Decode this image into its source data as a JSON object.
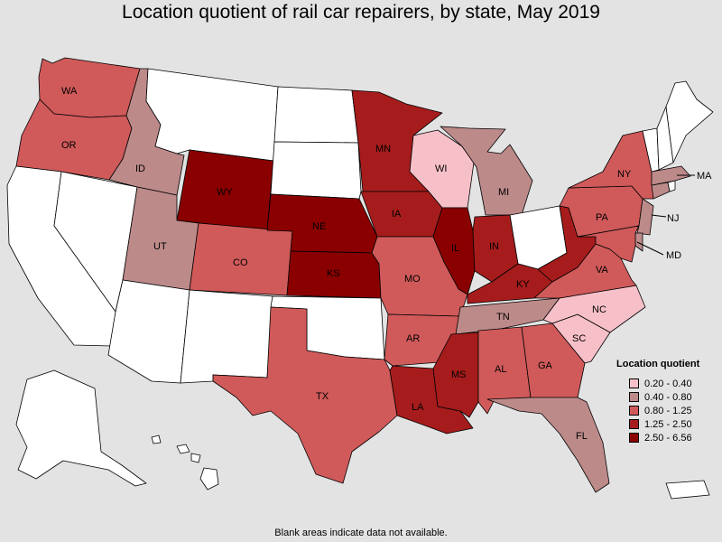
{
  "title": "Location quotient of rail car repairers, by state, May 2019",
  "footnote": "Blank areas indicate data not available.",
  "legend": {
    "title": "Location quotient",
    "classes": [
      {
        "label": "0.20 - 0.40",
        "color": "#f7c0c8"
      },
      {
        "label": "0.40 - 0.80",
        "color": "#bd8a8a"
      },
      {
        "label": "0.80 - 1.25",
        "color": "#d05a5a"
      },
      {
        "label": "1.25 - 2.50",
        "color": "#a61c1c"
      },
      {
        "label": "2.50 - 6.56",
        "color": "#8a0000"
      }
    ]
  },
  "colors": {
    "no_data": "#ffffff",
    "background": "#e3e3e3"
  },
  "states": {
    "WA": {
      "label": "WA",
      "class": 2
    },
    "OR": {
      "label": "OR",
      "class": 2
    },
    "ID": {
      "label": "ID",
      "class": 1
    },
    "WY": {
      "label": "WY",
      "class": 4
    },
    "UT": {
      "label": "UT",
      "class": 1
    },
    "CO": {
      "label": "CO",
      "class": 2
    },
    "NE": {
      "label": "NE",
      "class": 4
    },
    "KS": {
      "label": "KS",
      "class": 4
    },
    "MN": {
      "label": "MN",
      "class": 3
    },
    "IA": {
      "label": "IA",
      "class": 3
    },
    "MO": {
      "label": "MO",
      "class": 2
    },
    "AR": {
      "label": "AR",
      "class": 2
    },
    "LA": {
      "label": "LA",
      "class": 3
    },
    "TX": {
      "label": "TX",
      "class": 2
    },
    "WI": {
      "label": "WI",
      "class": 0
    },
    "IL": {
      "label": "IL",
      "class": 4
    },
    "MI": {
      "label": "MI",
      "class": 1
    },
    "IN": {
      "label": "IN",
      "class": 3
    },
    "KY": {
      "label": "KY",
      "class": 3
    },
    "TN": {
      "label": "TN",
      "class": 1
    },
    "MS": {
      "label": "MS",
      "class": 3
    },
    "AL": {
      "label": "AL",
      "class": 2
    },
    "GA": {
      "label": "GA",
      "class": 2
    },
    "FL": {
      "label": "FL",
      "class": 1
    },
    "SC": {
      "label": "SC",
      "class": 0
    },
    "NC": {
      "label": "NC",
      "class": 0
    },
    "VA": {
      "label": "VA",
      "class": 2
    },
    "WV": {
      "label": "",
      "class": 3
    },
    "PA": {
      "label": "PA",
      "class": 2
    },
    "NY": {
      "label": "NY",
      "class": 2
    },
    "MD": {
      "label": "MD",
      "class": 2
    },
    "NJ": {
      "label": "NJ",
      "class": 1
    },
    "DE": {
      "label": "",
      "class": 1
    },
    "MA": {
      "label": "MA",
      "class": 1
    },
    "CT": {
      "label": "",
      "class": 1
    },
    "CA": {
      "label": "",
      "class": null
    },
    "NV": {
      "label": "",
      "class": null
    },
    "AZ": {
      "label": "",
      "class": null
    },
    "NM": {
      "label": "",
      "class": null
    },
    "MT": {
      "label": "",
      "class": null
    },
    "ND": {
      "label": "",
      "class": null
    },
    "SD": {
      "label": "",
      "class": null
    },
    "OK": {
      "label": "",
      "class": null
    },
    "OH": {
      "label": "",
      "class": null
    },
    "ME": {
      "label": "",
      "class": null
    },
    "NH": {
      "label": "",
      "class": null
    },
    "VT": {
      "label": "",
      "class": null
    },
    "RI": {
      "label": "",
      "class": null
    },
    "AK": {
      "label": "",
      "class": null
    },
    "HI": {
      "label": "",
      "class": null
    },
    "PR": {
      "label": "",
      "class": null
    }
  }
}
